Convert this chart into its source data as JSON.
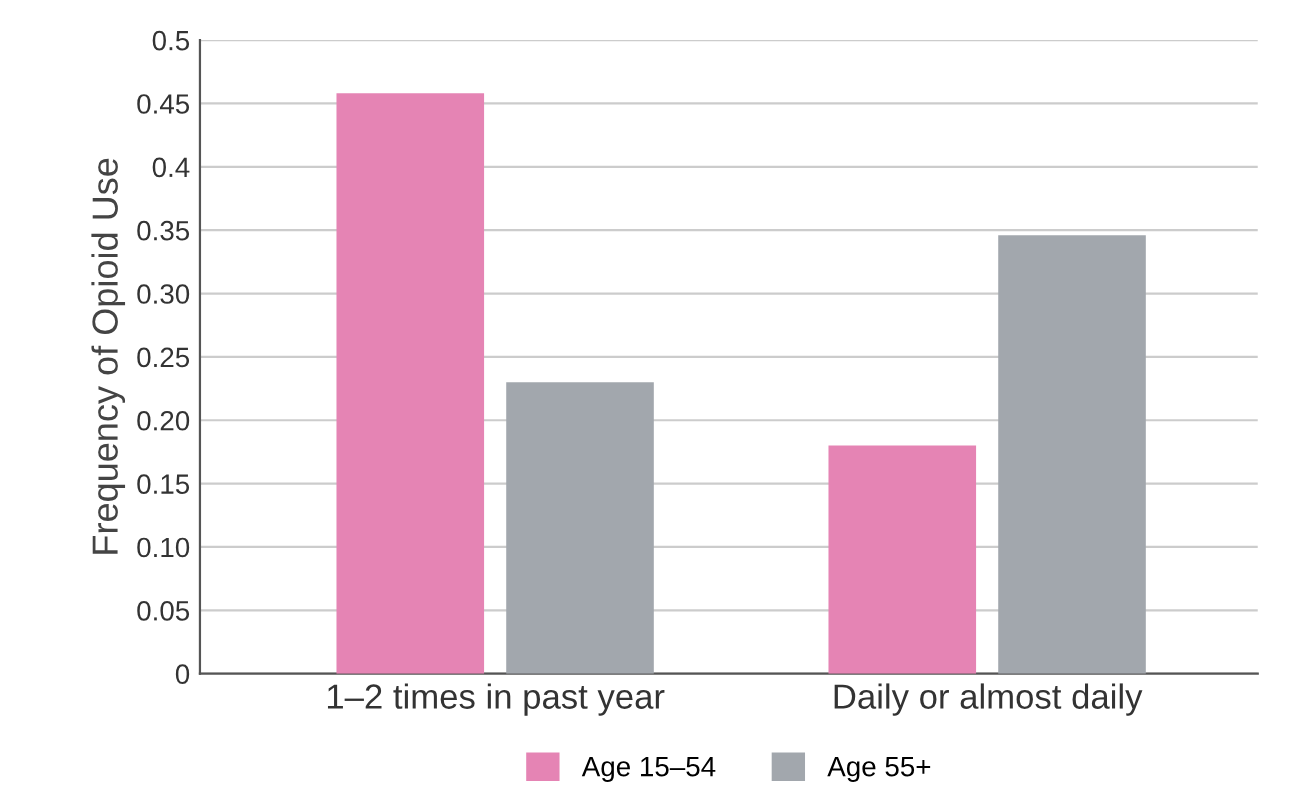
{
  "chart_data": {
    "type": "bar",
    "ylabel": "Frequency of Opioid Use",
    "categories": [
      "1–2 times in past year",
      "Daily or almost daily"
    ],
    "series": [
      {
        "name": "Age 15–54",
        "color": "#e584b4",
        "values": [
          0.458,
          0.18
        ]
      },
      {
        "name": "Age 55+",
        "color": "#a2a7ad",
        "values": [
          0.23,
          0.346
        ]
      }
    ],
    "ylim": [
      0,
      0.5
    ],
    "yticks": [
      0,
      0.05,
      {
        "value": 0.1,
        "label": "0.10"
      },
      0.15,
      {
        "value": 0.2,
        "label": "0.20"
      },
      0.25,
      {
        "value": 0.3,
        "label": "0.30"
      },
      0.35,
      0.4,
      0.45,
      0.5
    ],
    "grid": "y",
    "legend": "bottom"
  }
}
